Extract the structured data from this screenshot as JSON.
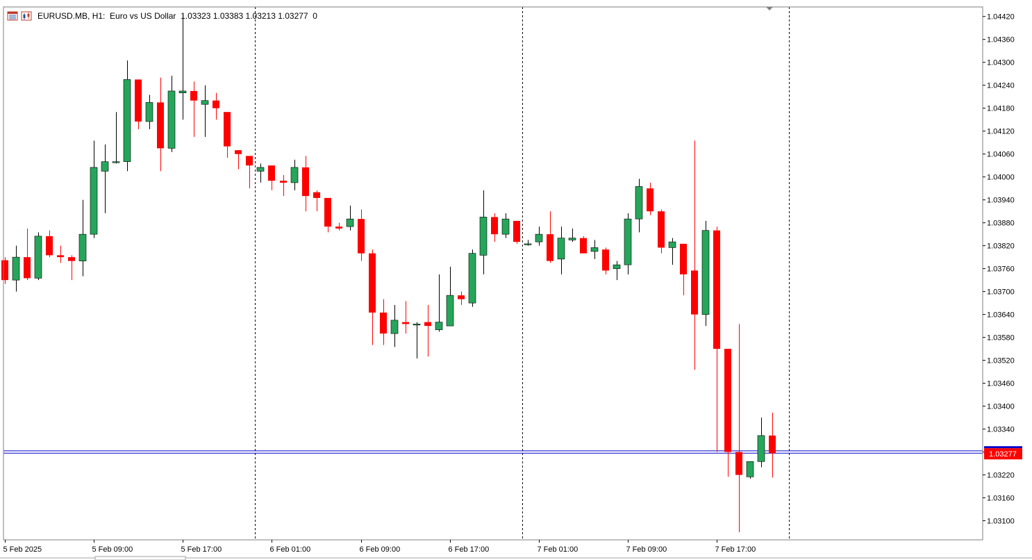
{
  "header": {
    "symbol": "EURUSD.MB",
    "timeframe": "H1",
    "description": "Euro vs US Dollar",
    "ohlc": "1.03323 1.03383 1.03213 1.03277",
    "volume": "0",
    "icons": [
      "chart-grid-icon",
      "candles-icon"
    ]
  },
  "colors": {
    "bull": "#26a65b",
    "bear": "#ff0000",
    "bid_line": "#0000cc",
    "ask_line": "#0000cc",
    "price_label_bg": "#ff0000",
    "period_separator": "#000000"
  },
  "current_price_label": "1.03277",
  "chart_data": {
    "type": "candlestick",
    "title": "",
    "timeframe": "H1",
    "grid": false,
    "period_separators": true,
    "ylim": [
      1.0305,
      1.04445
    ],
    "y_ticks": [
      "1.04420",
      "1.04360",
      "1.04300",
      "1.04240",
      "1.04180",
      "1.04120",
      "1.04060",
      "1.04000",
      "1.03940",
      "1.03880",
      "1.03820",
      "1.03760",
      "1.03700",
      "1.03640",
      "1.03580",
      "1.03520",
      "1.03460",
      "1.03400",
      "1.03340",
      "1.03280",
      "1.03220",
      "1.03160",
      "1.03100"
    ],
    "x_labels": [
      {
        "text": "5 Feb 2025",
        "index": 0
      },
      {
        "text": "5 Feb 09:00",
        "index": 8
      },
      {
        "text": "5 Feb 17:00",
        "index": 16
      },
      {
        "text": "6 Feb 01:00",
        "index": 24
      },
      {
        "text": "6 Feb 09:00",
        "index": 32
      },
      {
        "text": "6 Feb 17:00",
        "index": 40
      },
      {
        "text": "7 Feb 01:00",
        "index": 48
      },
      {
        "text": "7 Feb 09:00",
        "index": 56
      },
      {
        "text": "7 Feb 17:00",
        "index": 64
      }
    ],
    "separators_after_index": [
      22,
      46,
      70
    ],
    "bid": 1.03277,
    "ask": 1.03283,
    "candles": [
      {
        "o": 1.03782,
        "h": 1.0379,
        "l": 1.0372,
        "c": 1.0373
      },
      {
        "o": 1.0373,
        "h": 1.0382,
        "l": 1.037,
        "c": 1.0379
      },
      {
        "o": 1.0379,
        "h": 1.03865,
        "l": 1.0373,
        "c": 1.03735
      },
      {
        "o": 1.03735,
        "h": 1.03855,
        "l": 1.0373,
        "c": 1.03845
      },
      {
        "o": 1.03845,
        "h": 1.0386,
        "l": 1.0379,
        "c": 1.03795
      },
      {
        "o": 1.03795,
        "h": 1.0382,
        "l": 1.03775,
        "c": 1.0379
      },
      {
        "o": 1.0379,
        "h": 1.03795,
        "l": 1.0373,
        "c": 1.0378
      },
      {
        "o": 1.0378,
        "h": 1.0394,
        "l": 1.0374,
        "c": 1.0385
      },
      {
        "o": 1.0385,
        "h": 1.04095,
        "l": 1.0384,
        "c": 1.04025
      },
      {
        "o": 1.04015,
        "h": 1.04085,
        "l": 1.03905,
        "c": 1.0404
      },
      {
        "o": 1.0404,
        "h": 1.0417,
        "l": 1.04035,
        "c": 1.0404
      },
      {
        "o": 1.0404,
        "h": 1.04305,
        "l": 1.04015,
        "c": 1.04255
      },
      {
        "o": 1.04255,
        "h": 1.04255,
        "l": 1.04125,
        "c": 1.04145
      },
      {
        "o": 1.04145,
        "h": 1.04215,
        "l": 1.04125,
        "c": 1.04195
      },
      {
        "o": 1.04195,
        "h": 1.0426,
        "l": 1.04015,
        "c": 1.04075
      },
      {
        "o": 1.04075,
        "h": 1.04265,
        "l": 1.04065,
        "c": 1.04225
      },
      {
        "o": 1.0422,
        "h": 1.04425,
        "l": 1.0415,
        "c": 1.04225
      },
      {
        "o": 1.04225,
        "h": 1.0425,
        "l": 1.04105,
        "c": 1.042
      },
      {
        "o": 1.0419,
        "h": 1.0424,
        "l": 1.04105,
        "c": 1.042
      },
      {
        "o": 1.042,
        "h": 1.0422,
        "l": 1.0415,
        "c": 1.0418
      },
      {
        "o": 1.0417,
        "h": 1.0417,
        "l": 1.0405,
        "c": 1.0408
      },
      {
        "o": 1.0407,
        "h": 1.0407,
        "l": 1.0402,
        "c": 1.0406
      },
      {
        "o": 1.04055,
        "h": 1.04055,
        "l": 1.0397,
        "c": 1.0403
      },
      {
        "o": 1.04015,
        "h": 1.04035,
        "l": 1.03985,
        "c": 1.04025
      },
      {
        "o": 1.0403,
        "h": 1.0403,
        "l": 1.03965,
        "c": 1.0399
      },
      {
        "o": 1.0399,
        "h": 1.04005,
        "l": 1.0395,
        "c": 1.03985
      },
      {
        "o": 1.03985,
        "h": 1.04045,
        "l": 1.03965,
        "c": 1.04025
      },
      {
        "o": 1.04025,
        "h": 1.04055,
        "l": 1.0391,
        "c": 1.0395
      },
      {
        "o": 1.0396,
        "h": 1.03965,
        "l": 1.0391,
        "c": 1.03945
      },
      {
        "o": 1.03945,
        "h": 1.03945,
        "l": 1.03855,
        "c": 1.0387
      },
      {
        "o": 1.0387,
        "h": 1.0388,
        "l": 1.0386,
        "c": 1.03865
      },
      {
        "o": 1.0387,
        "h": 1.03925,
        "l": 1.0386,
        "c": 1.0389
      },
      {
        "o": 1.0389,
        "h": 1.03915,
        "l": 1.0378,
        "c": 1.038
      },
      {
        "o": 1.038,
        "h": 1.0381,
        "l": 1.0356,
        "c": 1.03645
      },
      {
        "o": 1.03645,
        "h": 1.0368,
        "l": 1.0356,
        "c": 1.0359
      },
      {
        "o": 1.0359,
        "h": 1.03665,
        "l": 1.03555,
        "c": 1.03625
      },
      {
        "o": 1.0362,
        "h": 1.03675,
        "l": 1.0359,
        "c": 1.03615
      },
      {
        "o": 1.03615,
        "h": 1.0362,
        "l": 1.03525,
        "c": 1.03615
      },
      {
        "o": 1.0362,
        "h": 1.03665,
        "l": 1.0353,
        "c": 1.0361
      },
      {
        "o": 1.036,
        "h": 1.03745,
        "l": 1.03595,
        "c": 1.0362
      },
      {
        "o": 1.0361,
        "h": 1.03765,
        "l": 1.0361,
        "c": 1.0369
      },
      {
        "o": 1.0369,
        "h": 1.037,
        "l": 1.03665,
        "c": 1.0368
      },
      {
        "o": 1.0367,
        "h": 1.0381,
        "l": 1.0366,
        "c": 1.038
      },
      {
        "o": 1.03795,
        "h": 1.03965,
        "l": 1.03745,
        "c": 1.03895
      },
      {
        "o": 1.03895,
        "h": 1.03905,
        "l": 1.0383,
        "c": 1.0385
      },
      {
        "o": 1.0385,
        "h": 1.03905,
        "l": 1.0384,
        "c": 1.0389
      },
      {
        "o": 1.03885,
        "h": 1.03885,
        "l": 1.03825,
        "c": 1.0383
      },
      {
        "o": 1.03825,
        "h": 1.03835,
        "l": 1.0382,
        "c": 1.03825
      },
      {
        "o": 1.0383,
        "h": 1.0387,
        "l": 1.0382,
        "c": 1.0385
      },
      {
        "o": 1.0385,
        "h": 1.0391,
        "l": 1.03775,
        "c": 1.0378
      },
      {
        "o": 1.03785,
        "h": 1.0387,
        "l": 1.03745,
        "c": 1.0384
      },
      {
        "o": 1.03835,
        "h": 1.03865,
        "l": 1.0383,
        "c": 1.0384
      },
      {
        "o": 1.0384,
        "h": 1.03845,
        "l": 1.038,
        "c": 1.038
      },
      {
        "o": 1.03805,
        "h": 1.03835,
        "l": 1.03785,
        "c": 1.03815
      },
      {
        "o": 1.0381,
        "h": 1.03815,
        "l": 1.03745,
        "c": 1.03755
      },
      {
        "o": 1.0376,
        "h": 1.0378,
        "l": 1.0373,
        "c": 1.0377
      },
      {
        "o": 1.0377,
        "h": 1.03905,
        "l": 1.03745,
        "c": 1.0389
      },
      {
        "o": 1.0389,
        "h": 1.03995,
        "l": 1.03855,
        "c": 1.03975
      },
      {
        "o": 1.0397,
        "h": 1.03985,
        "l": 1.039,
        "c": 1.0391
      },
      {
        "o": 1.0391,
        "h": 1.03915,
        "l": 1.038,
        "c": 1.03815
      },
      {
        "o": 1.03815,
        "h": 1.0384,
        "l": 1.0377,
        "c": 1.0383
      },
      {
        "o": 1.03825,
        "h": 1.03825,
        "l": 1.0369,
        "c": 1.03745
      },
      {
        "o": 1.03755,
        "h": 1.04095,
        "l": 1.03495,
        "c": 1.0364
      },
      {
        "o": 1.0364,
        "h": 1.03885,
        "l": 1.0361,
        "c": 1.0386
      },
      {
        "o": 1.0386,
        "h": 1.0387,
        "l": 1.0328,
        "c": 1.0355
      },
      {
        "o": 1.0355,
        "h": 1.0355,
        "l": 1.03215,
        "c": 1.0328
      },
      {
        "o": 1.0328,
        "h": 1.03615,
        "l": 1.0307,
        "c": 1.0322
      },
      {
        "o": 1.03215,
        "h": 1.03255,
        "l": 1.0321,
        "c": 1.03255
      },
      {
        "o": 1.03255,
        "h": 1.0337,
        "l": 1.0324,
        "c": 1.03323
      },
      {
        "o": 1.03323,
        "h": 1.03383,
        "l": 1.03213,
        "c": 1.03277
      }
    ]
  }
}
